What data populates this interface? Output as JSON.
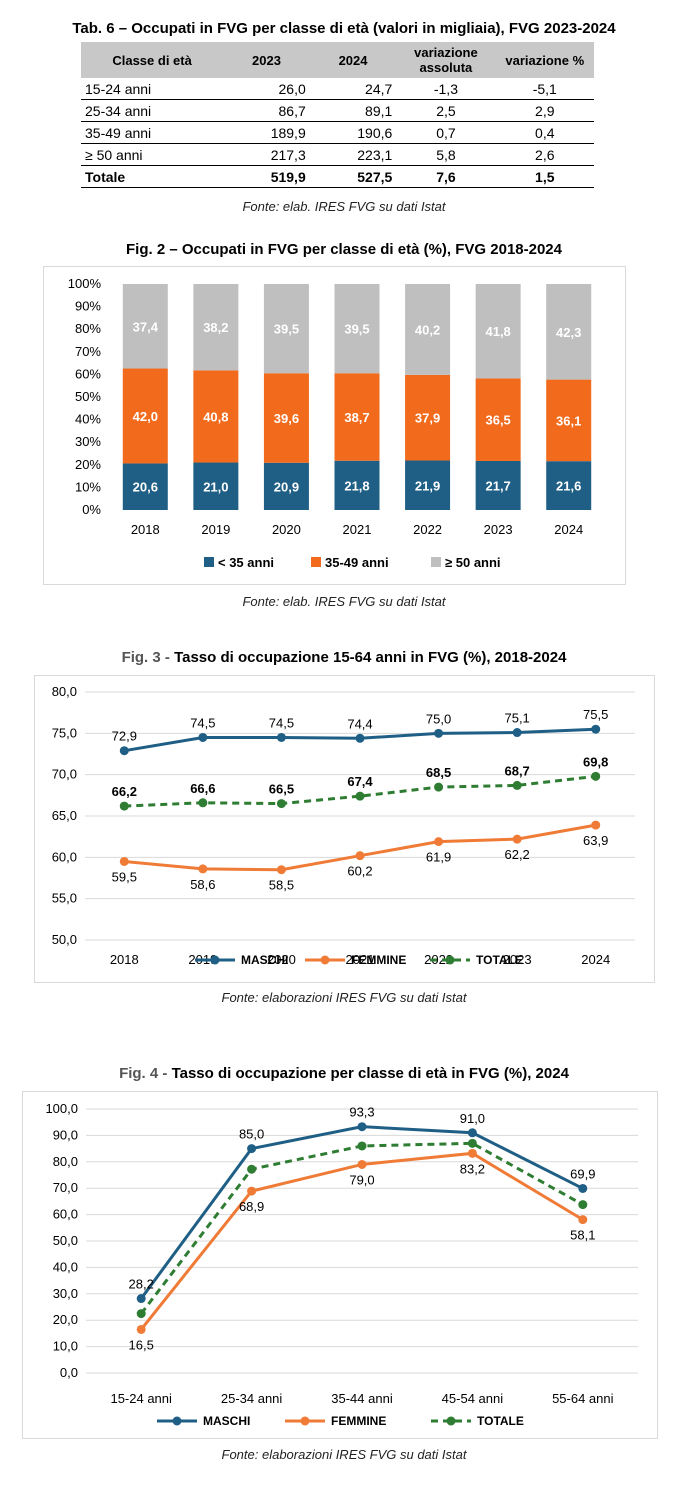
{
  "table": {
    "title": "Tab. 6 – Occupati in FVG per classe di età (valori in migliaia), FVG 2023-2024",
    "headers": [
      "Classe di età",
      "2023",
      "2024",
      "variazione assoluta",
      "variazione %"
    ],
    "rows": [
      [
        "15-24 anni",
        "26,0",
        "24,7",
        "-1,3",
        "-5,1"
      ],
      [
        "25-34 anni",
        "86,7",
        "89,1",
        "2,5",
        "2,9"
      ],
      [
        "35-49 anni",
        "189,9",
        "190,6",
        "0,7",
        "0,4"
      ],
      [
        "≥ 50 anni",
        "217,3",
        "223,1",
        "5,8",
        "2,6"
      ],
      [
        "Totale",
        "519,9",
        "527,5",
        "7,6",
        "1,5"
      ]
    ],
    "source": "Fonte: elab. IRES FVG su dati Istat"
  },
  "fig2": {
    "title": "Fig. 2 – Occupati in FVG per classe di età (%), FVG 2018-2024",
    "source": "Fonte: elab. IRES FVG su dati Istat"
  },
  "fig3": {
    "title_prefix": "Fig. 3 - ",
    "title_main": "Tasso di occupazione 15-64 anni in FVG (%), 2018-2024",
    "source": "Fonte: elaborazioni IRES FVG su dati Istat"
  },
  "fig4": {
    "title_prefix": "Fig. 4 - ",
    "title_main": "Tasso di occupazione per classe di età in FVG (%), 2024",
    "source": "Fonte: elaborazioni IRES FVG su dati Istat"
  },
  "chart_data": [
    {
      "type": "bar",
      "stacked": true,
      "categories": [
        "2018",
        "2019",
        "2020",
        "2021",
        "2022",
        "2023",
        "2024"
      ],
      "series": [
        {
          "name": "< 35 anni",
          "values": [
            20.6,
            21.0,
            20.9,
            21.8,
            21.9,
            21.7,
            21.6
          ],
          "labels": [
            "20,6",
            "21,0",
            "20,9",
            "21,8",
            "21,9",
            "21,7",
            "21,6"
          ],
          "color": "#1f5f86"
        },
        {
          "name": "35-49 anni",
          "values": [
            42.0,
            40.8,
            39.6,
            38.7,
            37.9,
            36.5,
            36.1
          ],
          "labels": [
            "42,0",
            "40,8",
            "39,6",
            "38,7",
            "37,9",
            "36,5",
            "36,1"
          ],
          "color": "#f26b1d"
        },
        {
          "name": "≥ 50 anni",
          "values": [
            37.4,
            38.2,
            39.5,
            39.5,
            40.2,
            41.8,
            42.3
          ],
          "labels": [
            "37,4",
            "38,2",
            "39,5",
            "39,5",
            "40,2",
            "41,8",
            "42,3"
          ],
          "color": "#bfbfbf"
        }
      ],
      "ylim": [
        0,
        100
      ],
      "yticks": [
        "0%",
        "10%",
        "20%",
        "30%",
        "40%",
        "50%",
        "60%",
        "70%",
        "80%",
        "90%",
        "100%"
      ],
      "legend": "bottom",
      "grid": false
    },
    {
      "type": "line",
      "categories": [
        "2018",
        "2019",
        "2020",
        "2021",
        "2022",
        "2023",
        "2024"
      ],
      "series": [
        {
          "name": "MASCHI",
          "values": [
            72.9,
            74.5,
            74.5,
            74.4,
            75.0,
            75.1,
            75.5
          ],
          "labels": [
            "72,9",
            "74,5",
            "74,5",
            "74,4",
            "75,0",
            "75,1",
            "75,5"
          ],
          "color": "#1f5f86",
          "dashed": false,
          "label_pos": "above"
        },
        {
          "name": "FEMMINE",
          "values": [
            59.5,
            58.6,
            58.5,
            60.2,
            61.9,
            62.2,
            63.9
          ],
          "labels": [
            "59,5",
            "58,6",
            "58,5",
            "60,2",
            "61,9",
            "62,2",
            "63,9"
          ],
          "color": "#ef7b36",
          "dashed": false,
          "label_pos": "below"
        },
        {
          "name": "TOTALE",
          "values": [
            66.2,
            66.6,
            66.5,
            67.4,
            68.5,
            68.7,
            69.8
          ],
          "labels": [
            "66,2",
            "66,6",
            "66,5",
            "67,4",
            "68,5",
            "68,7",
            "69,8"
          ],
          "color": "#2e7d32",
          "dashed": true,
          "label_pos": "above",
          "bold_labels": true
        }
      ],
      "ylim": [
        50,
        80
      ],
      "yticks": [
        "50,0",
        "55,0",
        "60,0",
        "65,0",
        "70,0",
        "75,0",
        "80,0"
      ],
      "legend": "bottom",
      "grid": true
    },
    {
      "type": "line",
      "categories": [
        "15-24 anni",
        "25-34 anni",
        "35-44 anni",
        "45-54 anni",
        "55-64 anni"
      ],
      "series": [
        {
          "name": "MASCHI",
          "values": [
            28.2,
            85.0,
            93.3,
            91.0,
            69.9
          ],
          "labels": [
            "28,2",
            "85,0",
            "93,3",
            "91,0",
            "69,9"
          ],
          "color": "#1f5f86",
          "dashed": false,
          "label_pos": "above"
        },
        {
          "name": "FEMMINE",
          "values": [
            16.5,
            68.9,
            79.0,
            83.2,
            58.1
          ],
          "labels": [
            "16,5",
            "68,9",
            "79,0",
            "83,2",
            "58,1"
          ],
          "color": "#ef7b36",
          "dashed": false,
          "label_pos": "below"
        },
        {
          "name": "TOTALE",
          "values": [
            22.5,
            77.2,
            86.0,
            87.0,
            63.8
          ],
          "labels": [],
          "color": "#2e7d32",
          "dashed": true,
          "label_pos": "none"
        }
      ],
      "ylim": [
        0,
        100
      ],
      "yticks": [
        "0,0",
        "10,0",
        "20,0",
        "30,0",
        "40,0",
        "50,0",
        "60,0",
        "70,0",
        "80,0",
        "90,0",
        "100,0"
      ],
      "legend": "bottom",
      "grid": true
    }
  ]
}
